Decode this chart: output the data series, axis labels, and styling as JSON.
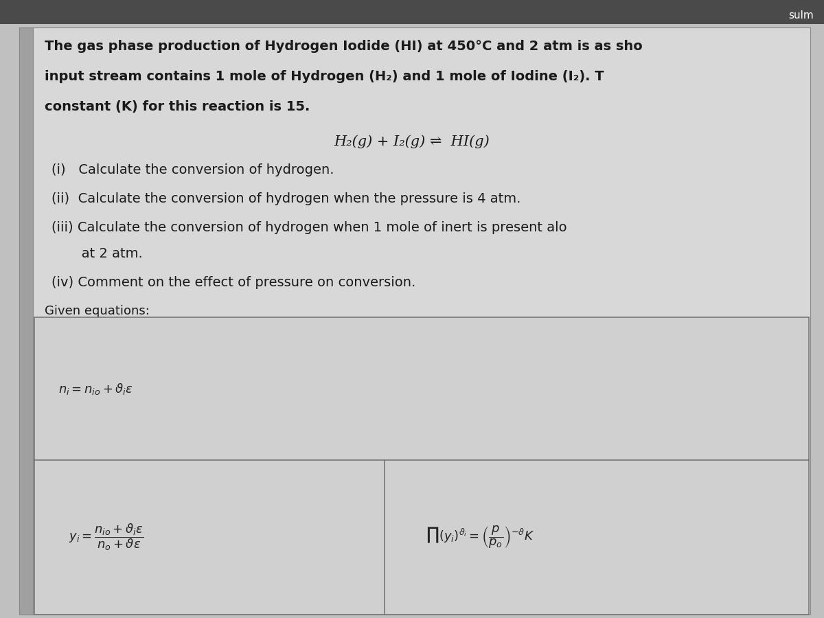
{
  "bg_color": "#c0c0c0",
  "card_color": "#d8d8d8",
  "text_color": "#1a1a1a",
  "header_text": "sulm",
  "header_bg": "#3a3a3a",
  "header_text_color": "#ffffff",
  "line1": "The gas phase production of Hydrogen Iodide (HI) at 450°C and 2 atm is as sho",
  "line2": "input stream contains 1 mole of Hydrogen (H₂) and 1 mole of Iodine (I₂). T",
  "line3": "constant (Κ) for this reaction is 15.",
  "reaction": "H₂(g) + I₂(g) ⇌  HI(g)",
  "q1": "(i)   Calculate the conversion of hydrogen.",
  "q2": "(ii)  Calculate the conversion of hydrogen when the pressure is 4 atm.",
  "q3": "(iii) Calculate the conversion of hydrogen when 1 mole of inert is present alo",
  "q3b": "       at 2 atm.",
  "q4": "(iv) Comment on the effect of pressure on conversion.",
  "given": "Given equations:",
  "font_size_body": 14,
  "font_size_reaction": 15,
  "font_size_given": 13,
  "font_size_eq": 13,
  "font_size_header": 11
}
